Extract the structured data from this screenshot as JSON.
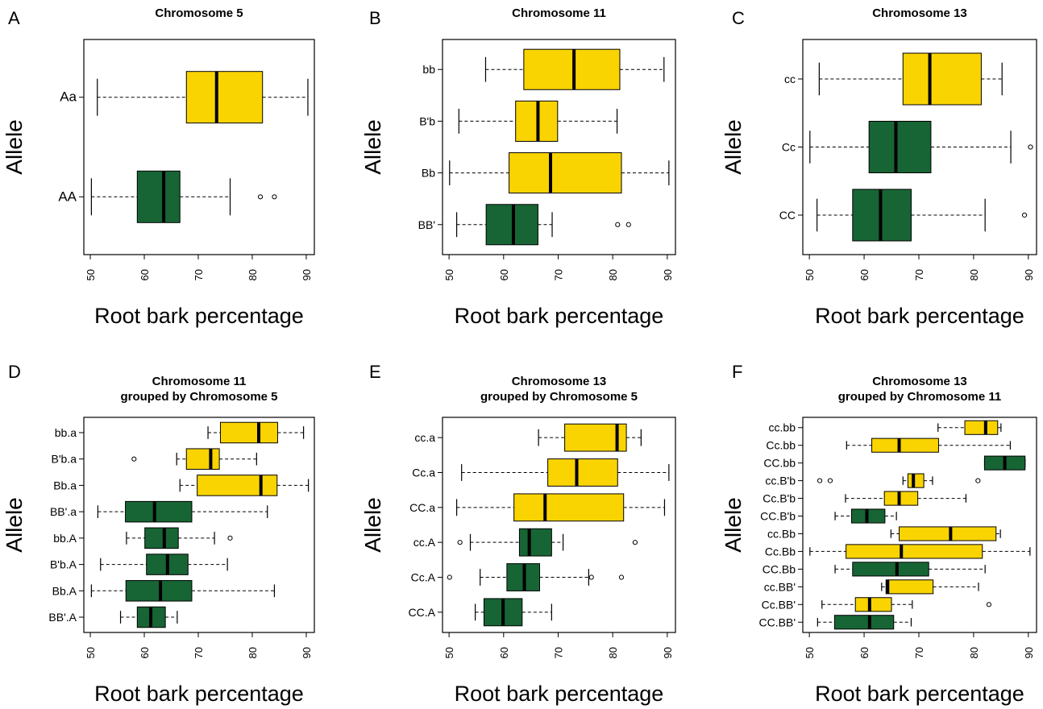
{
  "colors": {
    "yellow": "#f9d400",
    "green": "#176534",
    "frame": "#000000"
  },
  "chart_data": [
    {
      "panel_label": "A",
      "title": [
        "Chromosome 5"
      ],
      "type": "boxplot",
      "xlabel": "Root bark percentage",
      "ylabel": "Allele",
      "xlim": [
        48.8,
        91.5
      ],
      "xticks": [
        50,
        60,
        70,
        80,
        90
      ],
      "boxes": [
        {
          "category": "Aa",
          "color": "yellow",
          "whisker_low": 51.3,
          "q1": 67.8,
          "median": 73.4,
          "q3": 81.9,
          "whisker_high": 90.3,
          "outliers": []
        },
        {
          "category": "AA",
          "color": "green",
          "whisker_low": 50.2,
          "q1": 58.7,
          "median": 63.6,
          "q3": 66.6,
          "whisker_high": 75.9,
          "outliers": [
            81.5,
            84.1
          ]
        }
      ]
    },
    {
      "panel_label": "B",
      "title": [
        "Chromosome 11"
      ],
      "type": "boxplot",
      "xlabel": "Root bark percentage",
      "ylabel": "Allele",
      "xlim": [
        48.8,
        91.5
      ],
      "xticks": [
        50,
        60,
        70,
        80,
        90
      ],
      "boxes": [
        {
          "category": "bb",
          "color": "yellow",
          "whisker_low": 56.7,
          "q1": 63.7,
          "median": 72.9,
          "q3": 81.3,
          "whisker_high": 89.4,
          "outliers": []
        },
        {
          "category": "B'b",
          "color": "yellow",
          "whisker_low": 51.8,
          "q1": 62.2,
          "median": 66.3,
          "q3": 69.9,
          "whisker_high": 80.8,
          "outliers": []
        },
        {
          "category": "Bb",
          "color": "yellow",
          "whisker_low": 50.1,
          "q1": 61.0,
          "median": 68.6,
          "q3": 81.6,
          "whisker_high": 90.3,
          "outliers": []
        },
        {
          "category": "BB'",
          "color": "green",
          "whisker_low": 51.4,
          "q1": 56.8,
          "median": 61.8,
          "q3": 66.3,
          "whisker_high": 68.9,
          "outliers": [
            80.9,
            82.9
          ]
        }
      ]
    },
    {
      "panel_label": "C",
      "title": [
        "Chromosome 13"
      ],
      "type": "boxplot",
      "xlabel": "Root bark percentage",
      "ylabel": "Allele",
      "xlim": [
        48.8,
        91.5
      ],
      "xticks": [
        50,
        60,
        70,
        80,
        90
      ],
      "boxes": [
        {
          "category": "cc",
          "color": "yellow",
          "whisker_low": 51.8,
          "q1": 67.1,
          "median": 72.0,
          "q3": 81.4,
          "whisker_high": 85.2,
          "outliers": []
        },
        {
          "category": "Cc",
          "color": "green",
          "whisker_low": 50.1,
          "q1": 60.9,
          "median": 65.8,
          "q3": 72.2,
          "whisker_high": 86.8,
          "outliers": [
            90.4
          ]
        },
        {
          "category": "CC",
          "color": "green",
          "whisker_low": 51.4,
          "q1": 57.9,
          "median": 63.0,
          "q3": 68.6,
          "whisker_high": 82.1,
          "outliers": [
            89.3
          ]
        }
      ]
    },
    {
      "panel_label": "D",
      "title": [
        "Chromosome 11",
        "grouped by Chromosome 5"
      ],
      "type": "boxplot",
      "xlabel": "Root bark percentage",
      "ylabel": "Allele",
      "xlim": [
        48.8,
        91.5
      ],
      "xticks": [
        50,
        60,
        70,
        80,
        90
      ],
      "boxes": [
        {
          "category": "bb.a",
          "color": "yellow",
          "whisker_low": 71.8,
          "q1": 74.1,
          "median": 81.2,
          "q3": 84.7,
          "whisker_high": 89.5,
          "outliers": []
        },
        {
          "category": "B'b.a",
          "color": "yellow",
          "whisker_low": 66.0,
          "q1": 67.8,
          "median": 72.3,
          "q3": 73.9,
          "whisker_high": 80.8,
          "outliers": [
            58.1
          ]
        },
        {
          "category": "Bb.a",
          "color": "yellow",
          "whisker_low": 66.6,
          "q1": 69.8,
          "median": 81.6,
          "q3": 84.6,
          "whisker_high": 90.4,
          "outliers": []
        },
        {
          "category": "BB'.a",
          "color": "green",
          "whisker_low": 51.4,
          "q1": 56.5,
          "median": 61.9,
          "q3": 68.8,
          "whisker_high": 82.8,
          "outliers": []
        },
        {
          "category": "bb.A",
          "color": "green",
          "whisker_low": 56.7,
          "q1": 60.1,
          "median": 63.7,
          "q3": 66.3,
          "whisker_high": 73.0,
          "outliers": [
            75.9
          ]
        },
        {
          "category": "B'b.A",
          "color": "green",
          "whisker_low": 51.9,
          "q1": 60.4,
          "median": 64.3,
          "q3": 68.1,
          "whisker_high": 75.4,
          "outliers": []
        },
        {
          "category": "Bb.A",
          "color": "green",
          "whisker_low": 50.2,
          "q1": 56.6,
          "median": 63.0,
          "q3": 68.8,
          "whisker_high": 84.1,
          "outliers": []
        },
        {
          "category": "BB'.A",
          "color": "green",
          "whisker_low": 55.6,
          "q1": 58.7,
          "median": 61.2,
          "q3": 63.9,
          "whisker_high": 66.1,
          "outliers": []
        }
      ]
    },
    {
      "panel_label": "E",
      "title": [
        "Chromosome 13",
        "grouped by Chromosome 5"
      ],
      "type": "boxplot",
      "xlabel": "Root bark percentage",
      "ylabel": "Allele",
      "xlim": [
        48.8,
        91.5
      ],
      "xticks": [
        50,
        60,
        70,
        80,
        90
      ],
      "boxes": [
        {
          "category": "cc.a",
          "color": "yellow",
          "whisker_low": 66.4,
          "q1": 71.2,
          "median": 80.8,
          "q3": 82.5,
          "whisker_high": 85.2,
          "outliers": []
        },
        {
          "category": "Cc.a",
          "color": "yellow",
          "whisker_low": 52.3,
          "q1": 68.1,
          "median": 73.4,
          "q3": 80.9,
          "whisker_high": 90.3,
          "outliers": []
        },
        {
          "category": "CC.a",
          "color": "yellow",
          "whisker_low": 51.4,
          "q1": 61.9,
          "median": 67.6,
          "q3": 82.0,
          "whisker_high": 89.5,
          "outliers": []
        },
        {
          "category": "cc.A",
          "color": "green",
          "whisker_low": 53.9,
          "q1": 62.9,
          "median": 64.7,
          "q3": 68.8,
          "whisker_high": 70.9,
          "outliers": [
            52.0,
            84.1
          ]
        },
        {
          "category": "Cc.A",
          "color": "green",
          "whisker_low": 55.7,
          "q1": 60.6,
          "median": 63.8,
          "q3": 66.6,
          "whisker_high": 75.6,
          "outliers": [
            50.1,
            76.1,
            81.6
          ]
        },
        {
          "category": "CC.A",
          "color": "green",
          "whisker_low": 54.8,
          "q1": 56.4,
          "median": 59.9,
          "q3": 63.4,
          "whisker_high": 68.8,
          "outliers": []
        }
      ]
    },
    {
      "panel_label": "F",
      "title": [
        "Chromosome 13",
        "grouped by Chromosome 11"
      ],
      "type": "boxplot",
      "xlabel": "Root bark percentage",
      "ylabel": "Allele",
      "xlim": [
        48.8,
        91.5
      ],
      "xticks": [
        50,
        60,
        70,
        80,
        90
      ],
      "boxes": [
        {
          "category": "cc.bb",
          "color": "yellow",
          "whisker_low": 73.5,
          "q1": 78.4,
          "median": 82.2,
          "q3": 84.4,
          "whisker_high": 85.0,
          "outliers": []
        },
        {
          "category": "Cc.bb",
          "color": "yellow",
          "whisker_low": 56.8,
          "q1": 61.4,
          "median": 66.4,
          "q3": 73.6,
          "whisker_high": 86.7,
          "outliers": []
        },
        {
          "category": "CC.bb",
          "color": "green",
          "whisker_low": 82.0,
          "q1": 82.0,
          "median": 85.7,
          "q3": 89.4,
          "whisker_high": 89.4,
          "outliers": []
        },
        {
          "category": "cc.B'b",
          "color": "yellow",
          "whisker_low": 67.1,
          "q1": 68.0,
          "median": 69.0,
          "q3": 70.9,
          "whisker_high": 72.5,
          "outliers": [
            51.9,
            53.8,
            80.8
          ]
        },
        {
          "category": "Cc.B'b",
          "color": "yellow",
          "whisker_low": 56.6,
          "q1": 63.7,
          "median": 66.4,
          "q3": 69.8,
          "whisker_high": 78.6,
          "outliers": []
        },
        {
          "category": "CC.B'b",
          "color": "green",
          "whisker_low": 54.7,
          "q1": 57.7,
          "median": 60.5,
          "q3": 63.8,
          "whisker_high": 65.9,
          "outliers": []
        },
        {
          "category": "cc.Bb",
          "color": "yellow",
          "whisker_low": 64.9,
          "q1": 66.4,
          "median": 75.8,
          "q3": 84.1,
          "whisker_high": 84.9,
          "outliers": []
        },
        {
          "category": "Cc.Bb",
          "color": "yellow",
          "whisker_low": 50.1,
          "q1": 56.7,
          "median": 66.8,
          "q3": 81.6,
          "whisker_high": 90.3,
          "outliers": []
        },
        {
          "category": "CC.Bb",
          "color": "green",
          "whisker_low": 54.7,
          "q1": 57.9,
          "median": 66.0,
          "q3": 71.8,
          "whisker_high": 82.1,
          "outliers": []
        },
        {
          "category": "cc.BB'",
          "color": "yellow",
          "whisker_low": 63.2,
          "q1": 64.0,
          "median": 64.3,
          "q3": 72.6,
          "whisker_high": 80.9,
          "outliers": []
        },
        {
          "category": "Cc.BB'",
          "color": "yellow",
          "whisker_low": 52.3,
          "q1": 58.4,
          "median": 61.0,
          "q3": 65.0,
          "whisker_high": 68.8,
          "outliers": [
            82.8
          ]
        },
        {
          "category": "CC.BB'",
          "color": "green",
          "whisker_low": 51.5,
          "q1": 54.6,
          "median": 61.0,
          "q3": 65.4,
          "whisker_high": 68.6,
          "outliers": []
        }
      ]
    }
  ]
}
